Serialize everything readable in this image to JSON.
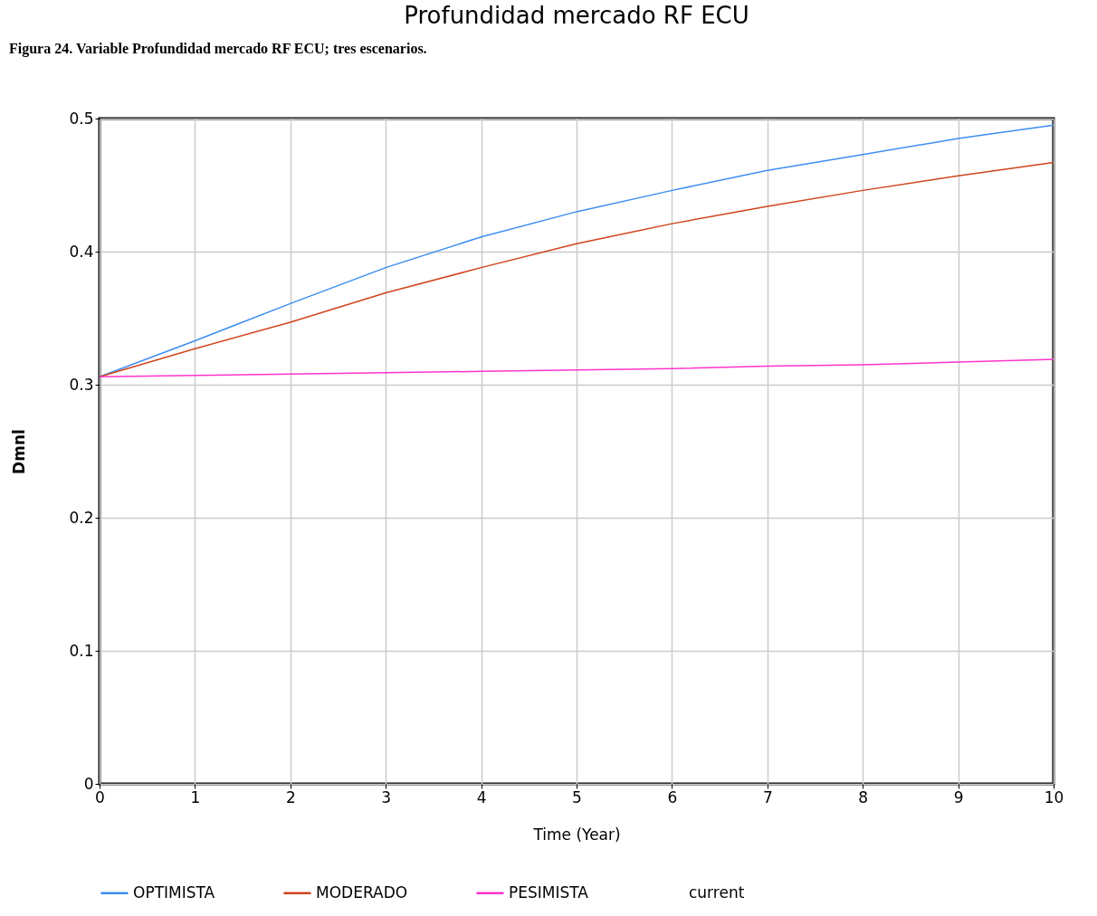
{
  "chart_data": {
    "type": "line",
    "title": "Profundidad mercado RF ECU",
    "xlabel": "Time (Year)",
    "ylabel": "Dmnl",
    "annotations": [
      "Figura 24. Variable Profundidad mercado RF ECU; tres escenarios."
    ],
    "x": [
      0,
      1,
      2,
      3,
      4,
      5,
      6,
      7,
      8,
      9,
      10
    ],
    "series": [
      {
        "name": "OPTIMISTA",
        "color": "#3d8ef0",
        "values": [
          0.306,
          0.333,
          0.361,
          0.388,
          0.411,
          0.43,
          0.446,
          0.461,
          0.473,
          0.485,
          0.495
        ]
      },
      {
        "name": "MODERADO",
        "color": "#d0441c",
        "values": [
          0.306,
          0.327,
          0.347,
          0.369,
          0.388,
          0.406,
          0.421,
          0.434,
          0.446,
          0.457,
          0.467
        ]
      },
      {
        "name": "PESIMISTA",
        "color": "#ff33cc",
        "values": [
          0.306,
          0.307,
          0.308,
          0.309,
          0.31,
          0.311,
          0.312,
          0.314,
          0.315,
          0.317,
          0.319
        ]
      },
      {
        "name": "current",
        "values": [
          null,
          null,
          null,
          null,
          null,
          null,
          null,
          null,
          null,
          null,
          null
        ]
      }
    ],
    "xlim": [
      0,
      10
    ],
    "xticks": [
      0,
      1,
      2,
      3,
      4,
      5,
      6,
      7,
      8,
      9,
      10
    ],
    "ylim": [
      0,
      0.5
    ],
    "yticks": [
      0,
      0.1,
      0.2,
      0.3,
      0.4,
      0.5
    ],
    "grid": true,
    "legend": "bottom",
    "marker": "none",
    "line_style": "solid"
  }
}
